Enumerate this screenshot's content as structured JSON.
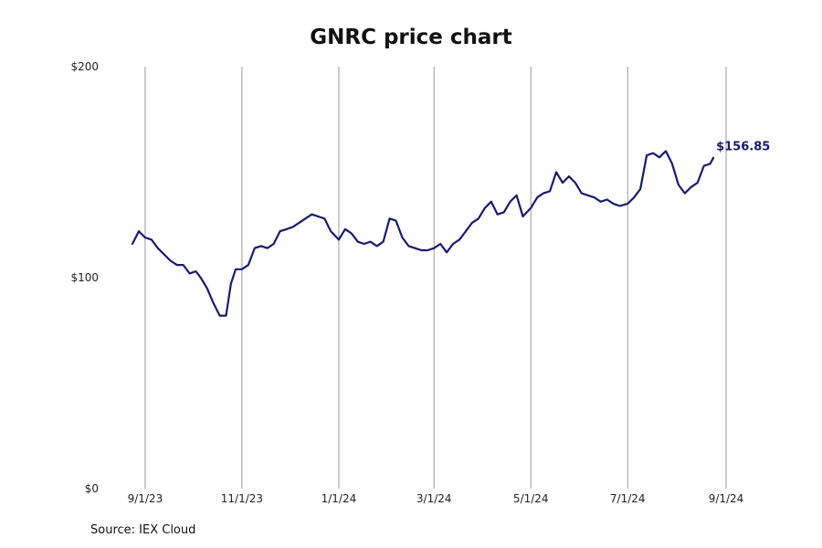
{
  "chart_data": {
    "type": "line",
    "title": "GNRC price chart",
    "source": "Source: IEX Cloud",
    "y_ticks": [
      {
        "value": 0,
        "label": "$0"
      },
      {
        "value": 100,
        "label": "$100"
      },
      {
        "value": 200,
        "label": "$200"
      }
    ],
    "ylim": [
      0,
      200
    ],
    "x_ticks": [
      "2023-09-01",
      "2023-11-01",
      "2024-01-01",
      "2024-03-01",
      "2024-05-01",
      "2024-07-01",
      "2024-09-01"
    ],
    "x_tick_labels": [
      "9/1/23",
      "11/1/23",
      "1/1/24",
      "3/1/24",
      "5/1/24",
      "7/1/24",
      "9/1/24"
    ],
    "xlim": [
      "2023-08-24",
      "2024-09-01"
    ],
    "grid": "vertical",
    "line_color": "#1a1a6e",
    "last_value_label": "$156.85",
    "series": [
      {
        "x": [
          "2023-08-24",
          "2023-08-28",
          "2023-09-01",
          "2023-09-05",
          "2023-09-09",
          "2023-09-13",
          "2023-09-17",
          "2023-09-21",
          "2023-09-25",
          "2023-09-29",
          "2023-10-03",
          "2023-10-06",
          "2023-10-10",
          "2023-10-14",
          "2023-10-18",
          "2023-10-22",
          "2023-10-25",
          "2023-10-28",
          "2023-11-01",
          "2023-11-05",
          "2023-11-09",
          "2023-11-13",
          "2023-11-17",
          "2023-11-21",
          "2023-11-25",
          "2023-11-29",
          "2023-12-03",
          "2023-12-07",
          "2023-12-11",
          "2023-12-15",
          "2023-12-19",
          "2023-12-23",
          "2023-12-27",
          "2024-01-01",
          "2024-01-05",
          "2024-01-09",
          "2024-01-13",
          "2024-01-17",
          "2024-01-21",
          "2024-01-25",
          "2024-01-29",
          "2024-02-02",
          "2024-02-06",
          "2024-02-10",
          "2024-02-14",
          "2024-02-18",
          "2024-02-22",
          "2024-02-26",
          "2024-03-01",
          "2024-03-05",
          "2024-03-09",
          "2024-03-13",
          "2024-03-17",
          "2024-03-21",
          "2024-03-25",
          "2024-03-29",
          "2024-04-02",
          "2024-04-06",
          "2024-04-10",
          "2024-04-14",
          "2024-04-18",
          "2024-04-22",
          "2024-04-26",
          "2024-05-01",
          "2024-05-05",
          "2024-05-09",
          "2024-05-13",
          "2024-05-17",
          "2024-05-21",
          "2024-05-25",
          "2024-05-29",
          "2024-06-02",
          "2024-06-06",
          "2024-06-10",
          "2024-06-14",
          "2024-06-18",
          "2024-06-22",
          "2024-06-26",
          "2024-07-01",
          "2024-07-05",
          "2024-07-09",
          "2024-07-13",
          "2024-07-17",
          "2024-07-21",
          "2024-07-25",
          "2024-07-29",
          "2024-08-02",
          "2024-08-06",
          "2024-08-10",
          "2024-08-14",
          "2024-08-18",
          "2024-08-22",
          "2024-08-24"
        ],
        "values": [
          116,
          122,
          119,
          118,
          114,
          111,
          108,
          106,
          106,
          102,
          103,
          100,
          95,
          88,
          82,
          82,
          97,
          104,
          104,
          106,
          114,
          115,
          114,
          116,
          122,
          123,
          124,
          126,
          128,
          130,
          129,
          128,
          122,
          118,
          123,
          121,
          117,
          116,
          117,
          115,
          117,
          128,
          127,
          119,
          115,
          114,
          113,
          113,
          114,
          116,
          112,
          116,
          118,
          122,
          126,
          128,
          133,
          136,
          130,
          131,
          136,
          139,
          129,
          133,
          138,
          140,
          141,
          150,
          145,
          148,
          145,
          140,
          139,
          138,
          136,
          137,
          135,
          134,
          135,
          138,
          142,
          158,
          159,
          157,
          160,
          154,
          144,
          140,
          143,
          145,
          153,
          154,
          156.85
        ]
      }
    ]
  }
}
